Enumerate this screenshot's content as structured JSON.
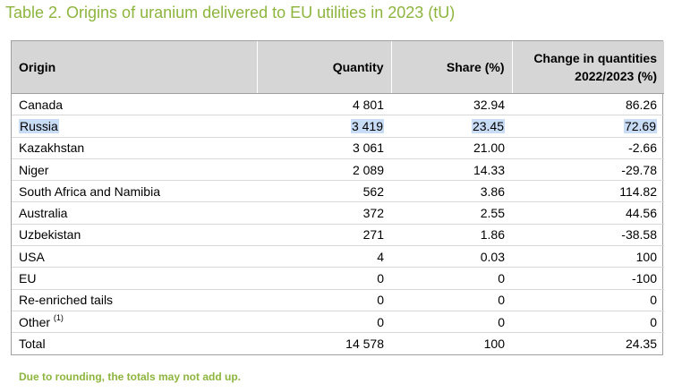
{
  "title": "Table 2. Origins of uranium delivered to EU utilities in 2023 (tU)",
  "columns": {
    "origin": "Origin",
    "quantity": "Quantity",
    "share": "Share (%)",
    "change_line1": "Change in quantities",
    "change_line2": "2022/2023 (%)"
  },
  "rows": [
    {
      "origin": "Canada",
      "quantity": "4 801",
      "share": "32.94",
      "change": "86.26"
    },
    {
      "origin": "Russia",
      "quantity": "3 419",
      "share": "23.45",
      "change": "72.69",
      "selected": true
    },
    {
      "origin": "Kazakhstan",
      "quantity": "3 061",
      "share": "21.00",
      "change": "-2.66"
    },
    {
      "origin": "Niger",
      "quantity": "2 089",
      "share": "14.33",
      "change": "-29.78"
    },
    {
      "origin": "South Africa and Namibia",
      "quantity": "562",
      "share": "3.86",
      "change": "114.82"
    },
    {
      "origin": "Australia",
      "quantity": "372",
      "share": "2.55",
      "change": "44.56"
    },
    {
      "origin": "Uzbekistan",
      "quantity": "271",
      "share": "1.86",
      "change": "-38.58"
    },
    {
      "origin": "USA",
      "quantity": "4",
      "share": "0.03",
      "change": "100"
    },
    {
      "origin": "EU",
      "quantity": "0",
      "share": "0",
      "change": "-100"
    },
    {
      "origin": "Re-enriched tails",
      "quantity": "0",
      "share": "0",
      "change": "0"
    },
    {
      "origin": "Other",
      "origin_sup": "(1)",
      "quantity": "0",
      "share": "0",
      "change": "0"
    }
  ],
  "total": {
    "origin": "Total",
    "quantity": "14 578",
    "share": "100",
    "change": "24.35"
  },
  "note": "Due to rounding, the totals may not add up.",
  "colors": {
    "title": "#8db53e",
    "header_bg": "#d6d6d6",
    "selection": "#c8dcf5"
  }
}
